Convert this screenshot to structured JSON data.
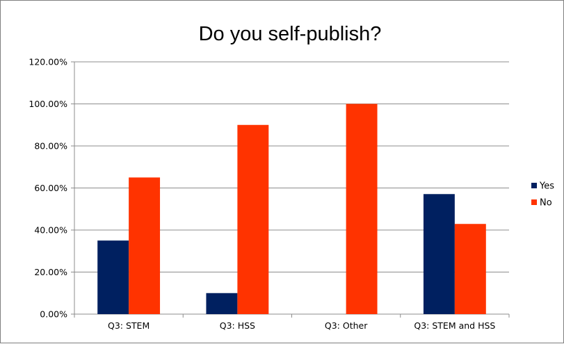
{
  "chart_data": {
    "type": "bar",
    "title": "Do you self-publish?",
    "categories": [
      "Q3: STEM",
      "Q3: HSS",
      "Q3: Other",
      "Q3: STEM and HSS"
    ],
    "series": [
      {
        "name": "Yes",
        "color": "#002060",
        "values": [
          35.0,
          10.0,
          0.0,
          57.1
        ]
      },
      {
        "name": "No",
        "color": "#ff3300",
        "values": [
          65.0,
          90.0,
          100.0,
          42.9
        ]
      }
    ],
    "y_ticks": [
      "0.00%",
      "20.00%",
      "40.00%",
      "60.00%",
      "80.00%",
      "100.00%",
      "120.00%"
    ],
    "ylim": [
      0,
      120
    ],
    "grid": true,
    "legend_position": "right"
  }
}
